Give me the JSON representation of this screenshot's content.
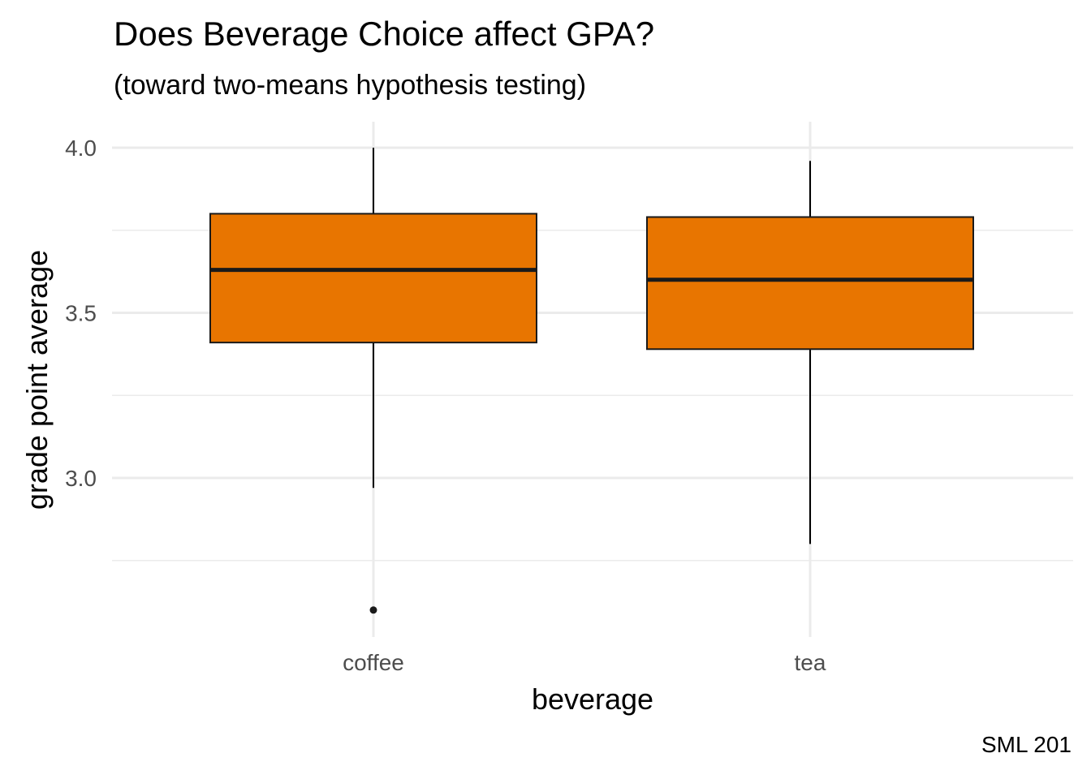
{
  "chart_data": {
    "type": "boxplot",
    "title": "Does Beverage Choice affect GPA?",
    "subtitle": "(toward two-means hypothesis testing)",
    "caption": "SML 201",
    "xlabel": "beverage",
    "ylabel": "grade point average",
    "categories": [
      "coffee",
      "tea"
    ],
    "ylim": [
      2.55,
      4.07
    ],
    "yticks": [
      3.0,
      3.5,
      4.0
    ],
    "ytick_labels": [
      "3.0",
      "3.5",
      "4.0"
    ],
    "grid": true,
    "fill_color": "#E87500",
    "boxes": [
      {
        "category": "coffee",
        "min": 2.97,
        "q1": 3.41,
        "median": 3.63,
        "q3": 3.8,
        "max": 4.0,
        "outliers": [
          2.6
        ]
      },
      {
        "category": "tea",
        "min": 2.8,
        "q1": 3.39,
        "median": 3.6,
        "q3": 3.79,
        "max": 3.96,
        "outliers": []
      }
    ]
  }
}
